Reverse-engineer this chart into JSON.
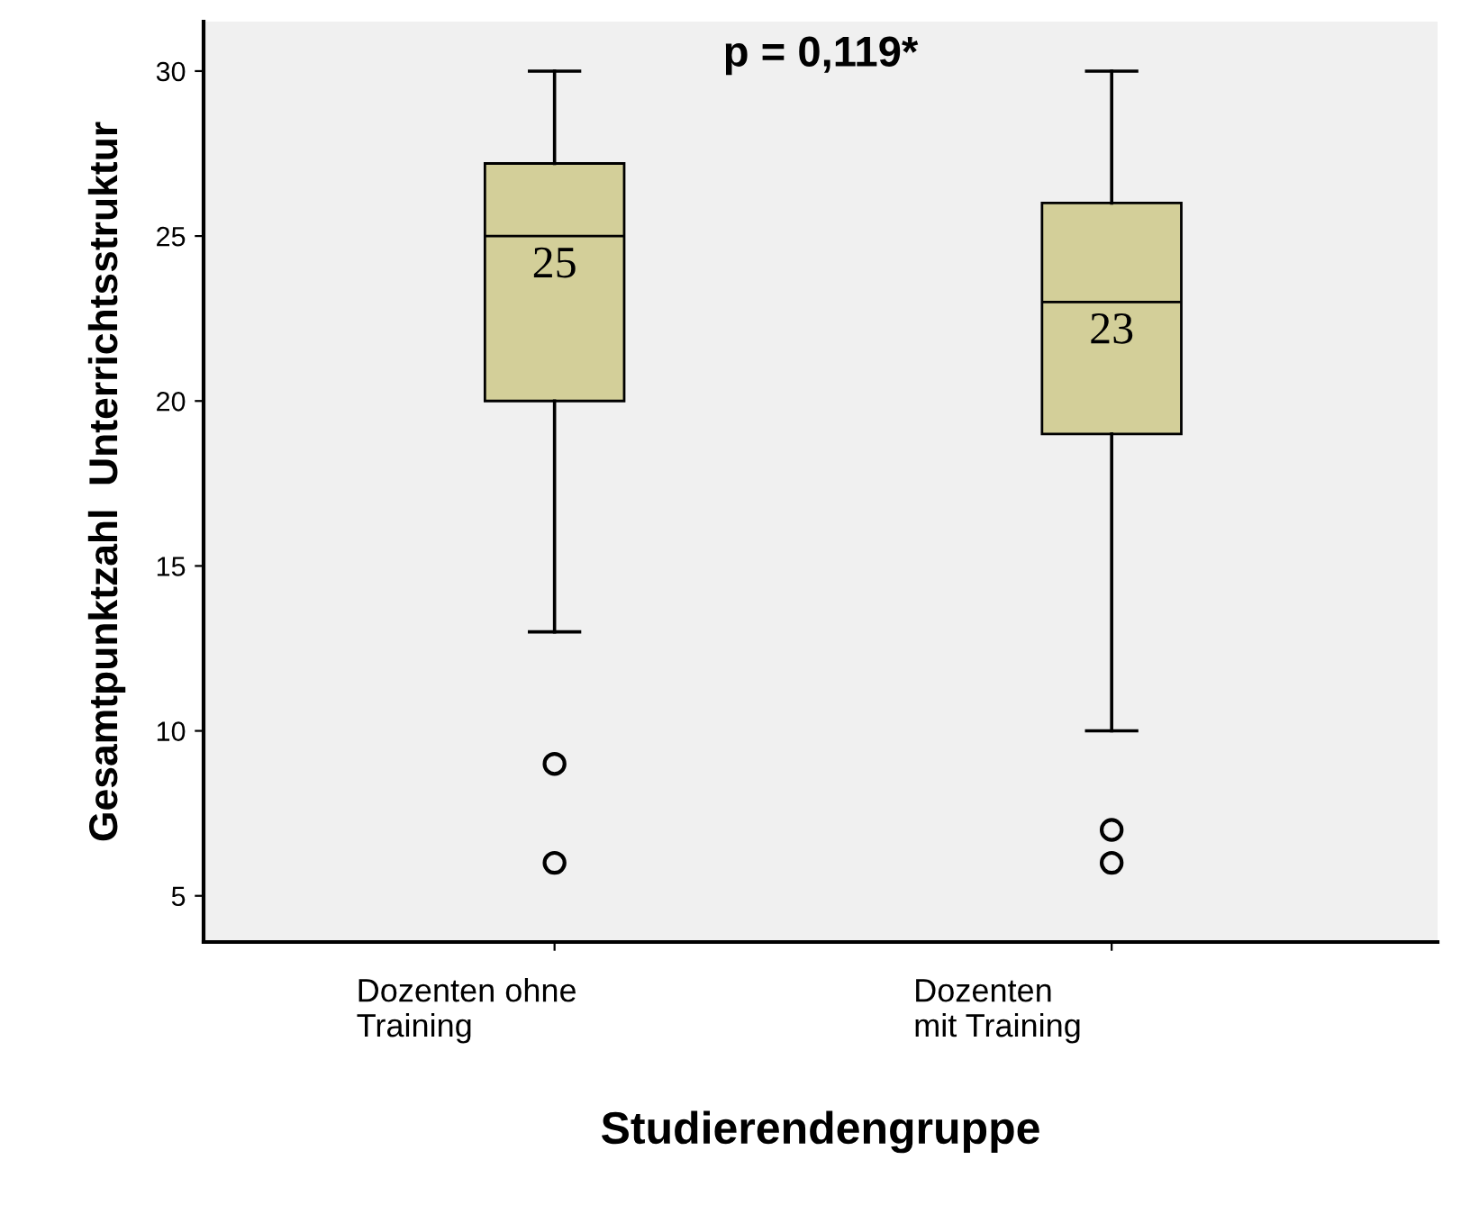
{
  "chart_data": {
    "type": "box",
    "xlabel": "Studierendengruppe",
    "ylabel": "Gesamtpunktzahl  Unterrichtsstruktur",
    "categories": [
      "Dozenten ohne\nTraining",
      "Dozenten\nmit Training"
    ],
    "boxes": [
      {
        "low": 13,
        "q1": 20,
        "median": 25,
        "q3": 27.2,
        "high": 30,
        "outliers": [
          9,
          6
        ]
      },
      {
        "low": 10,
        "q1": 19,
        "median": 23,
        "q3": 26,
        "high": 30,
        "outliers": [
          7,
          6
        ]
      }
    ],
    "color": "#d3cf99",
    "ylim": [
      3.6,
      31.5
    ],
    "yticks": [
      5,
      10,
      15,
      20,
      25,
      30
    ],
    "grid": false,
    "annotations": [
      "p = 0,119*",
      "25",
      "23"
    ]
  }
}
